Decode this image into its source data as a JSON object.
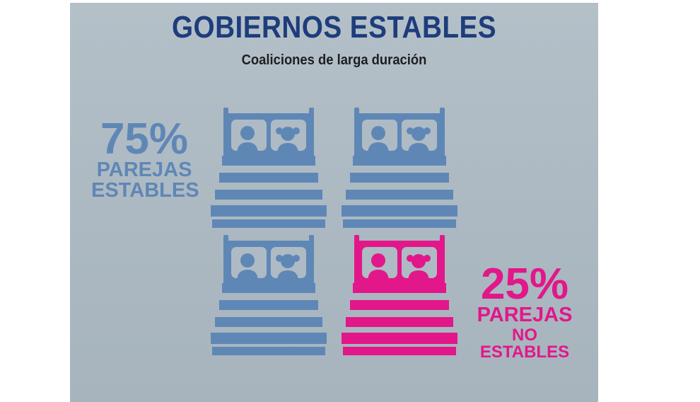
{
  "title": "GOBIERNOS ESTABLES",
  "subtitle": "Coaliciones de larga duración",
  "stable": {
    "percent": "75%",
    "line1": "PAREJAS",
    "line2": "ESTABLES",
    "color": "#5f87b6"
  },
  "unstable": {
    "percent": "25%",
    "line1": "PAREJAS",
    "line2": "NO ESTABLES",
    "color": "#e2178a"
  },
  "beds": [
    {
      "name": "bed-stable-1",
      "status": "stable"
    },
    {
      "name": "bed-stable-2",
      "status": "stable"
    },
    {
      "name": "bed-stable-3",
      "status": "stable"
    },
    {
      "name": "bed-unstable-1",
      "status": "unstable"
    }
  ]
}
